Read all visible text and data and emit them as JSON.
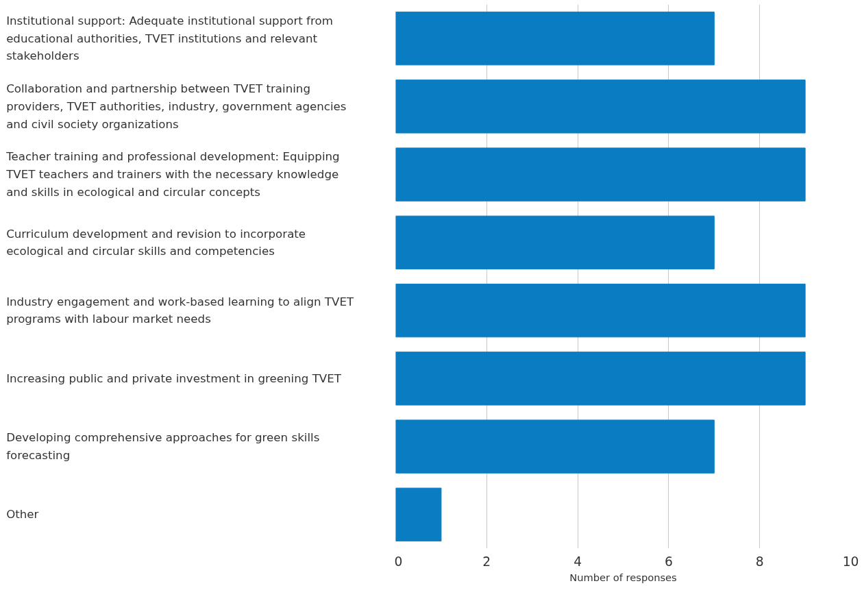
{
  "chart_data": {
    "type": "bar",
    "orientation": "horizontal",
    "xlabel": "Number of responses",
    "categories": [
      "Institutional support: Adequate institutional support from educational authorities, TVET institutions and relevant stakeholders",
      "Collaboration and partnership between TVET training providers, TVET authorities, industry, government agencies and civil society organizations",
      "Teacher training and professional development: Equipping TVET teachers and trainers with the necessary knowledge and skills in ecological and circular concepts",
      "Curriculum development and revision to incorporate ecological and circular skills and competencies",
      "Industry engagement and work-based learning to align TVET programs with labour market needs",
      "Increasing public and private investment in greening TVET",
      "Developing comprehensive approaches for green skills forecasting",
      "Other"
    ],
    "values": [
      7,
      9,
      9,
      7,
      9,
      9,
      7,
      1
    ],
    "color": "#0a7dc2",
    "xlim": [
      0,
      10
    ],
    "xticks": [
      0,
      2,
      4,
      6,
      8,
      10
    ],
    "grid": "x"
  }
}
